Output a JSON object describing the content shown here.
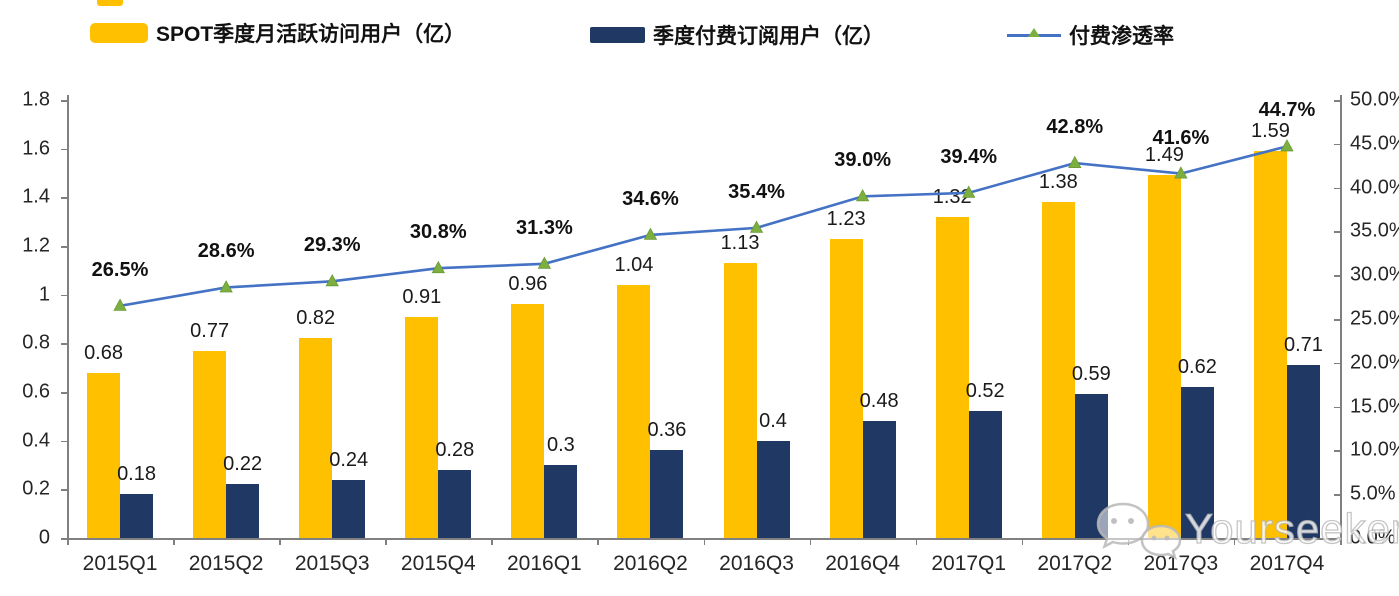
{
  "legend": {
    "mau": "SPOT季度月活跃访问用户（亿）",
    "subscribers": "季度付费订阅用户（亿）",
    "penetration": "付费渗透率"
  },
  "watermark": {
    "text": "Yourseeker"
  },
  "colors": {
    "mau_bar": "#FFC000",
    "subscriber_bar": "#1F3864",
    "penetration_line": "#4472C4",
    "penetration_marker": "#7CAF3F",
    "axis": "#808080",
    "label_text": "#1a1a1a"
  },
  "chart_data": {
    "type": "bar",
    "subtype": "combo-bar-line",
    "title": "",
    "categories": [
      "2015Q1",
      "2015Q2",
      "2015Q3",
      "2015Q4",
      "2016Q1",
      "2016Q2",
      "2016Q3",
      "2016Q4",
      "2017Q1",
      "2017Q2",
      "2017Q3",
      "2017Q4"
    ],
    "series": [
      {
        "name": "SPOT季度月活跃访问用户（亿）",
        "type": "bar",
        "axis": "left",
        "color": "#FFC000",
        "values": [
          0.68,
          0.77,
          0.82,
          0.91,
          0.96,
          1.04,
          1.13,
          1.23,
          1.32,
          1.38,
          1.49,
          1.59
        ],
        "labels": [
          "0.68",
          "0.77",
          "0.82",
          "0.91",
          "0.96",
          "1.04",
          "1.13",
          "1.23",
          "1.32",
          "1.38",
          "1.49",
          "1.59"
        ]
      },
      {
        "name": "季度付费订阅用户（亿）",
        "type": "bar",
        "axis": "left",
        "color": "#1F3864",
        "values": [
          0.18,
          0.22,
          0.24,
          0.28,
          0.3,
          0.36,
          0.4,
          0.48,
          0.52,
          0.59,
          0.62,
          0.71
        ],
        "labels": [
          "0.18",
          "0.22",
          "0.24",
          "0.28",
          "0.3",
          "0.36",
          "0.4",
          "0.48",
          "0.52",
          "0.59",
          "0.62",
          "0.71"
        ]
      },
      {
        "name": "付费渗透率",
        "type": "line",
        "axis": "right",
        "color": "#4472C4",
        "marker": "triangle",
        "marker_color": "#7CAF3F",
        "values": [
          26.5,
          28.6,
          29.3,
          30.8,
          31.3,
          34.6,
          35.4,
          39.0,
          39.4,
          42.8,
          41.6,
          44.7
        ],
        "labels": [
          "26.5%",
          "28.6%",
          "29.3%",
          "30.8%",
          "31.3%",
          "34.6%",
          "35.4%",
          "39.0%",
          "39.4%",
          "42.8%",
          "41.6%",
          "44.7%"
        ]
      }
    ],
    "left_axis": {
      "min": 0,
      "max": 1.8,
      "tick_values": [
        1.8,
        1.6,
        1.4,
        1.2,
        1.0,
        0.8,
        0.6,
        0.4,
        0.2,
        0
      ],
      "tick_labels": [
        "1.8",
        "1.6",
        "1.4",
        "1.2",
        "1",
        "0.8",
        "0.6",
        "0.4",
        "0.2",
        "0"
      ]
    },
    "right_axis": {
      "min": 0,
      "max": 50,
      "tick_values": [
        50,
        45,
        40,
        35,
        30,
        25,
        20,
        15,
        10,
        5,
        0
      ],
      "tick_labels": [
        "50.0%",
        "45.0%",
        "40.0%",
        "35.0%",
        "30.0%",
        "25.0%",
        "20.0%",
        "15.0%",
        "10.0%",
        "5.0%",
        "0.0%"
      ]
    },
    "grid": false,
    "legend_position": "top",
    "xlabel": "",
    "ylabel": ""
  }
}
